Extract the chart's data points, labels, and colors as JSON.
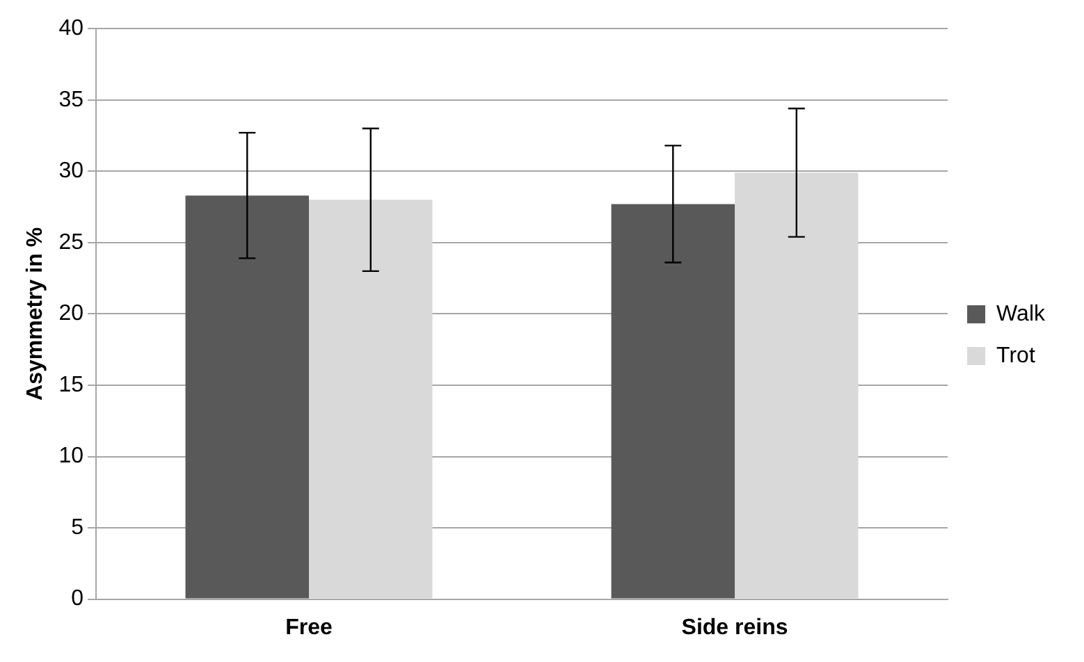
{
  "chart_data": {
    "type": "bar",
    "ylabel": "Asymmetry in %",
    "categories": [
      "Free",
      "Side reins"
    ],
    "series": [
      {
        "name": "Walk",
        "color": "#595959",
        "values": [
          28.3,
          27.7
        ],
        "errors": [
          4.4,
          4.1
        ]
      },
      {
        "name": "Trot",
        "color": "#d9d9d9",
        "values": [
          28.0,
          29.9
        ],
        "errors": [
          5.0,
          4.5
        ]
      }
    ],
    "ylim": [
      0,
      40
    ],
    "yticks": [
      0,
      5,
      10,
      15,
      20,
      25,
      30,
      35,
      40
    ],
    "grid": "y",
    "legend": "right"
  }
}
